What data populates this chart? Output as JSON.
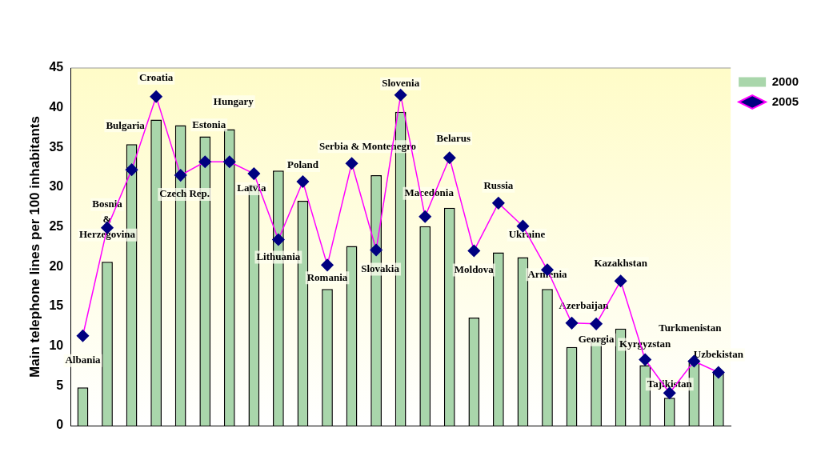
{
  "chart_data": {
    "type": "bar",
    "ylabel": "Main telephone lines per 100 inhabitants",
    "categories": [
      "Albania",
      "Bosnia & Herzegovina",
      "Bulgaria",
      "Croatia",
      "Czech Rep.",
      "Estonia",
      "Hungary",
      "Latvia",
      "Lithuania",
      "Poland",
      "Romania",
      "Serbia & Montenegro",
      "Slovakia",
      "Slovenia",
      "Macedonia",
      "Belarus",
      "Moldova",
      "Russia",
      "Ukraine",
      "Armenia",
      "Azerbaijan",
      "Georgia",
      "Kazakhstan",
      "Kyrgyzstan",
      "Tajikistan",
      "Turkmenistan",
      "Uzbekistan"
    ],
    "series": [
      {
        "name": "2000",
        "type": "bar",
        "color": "#a9d6ab",
        "values": [
          4.8,
          20.6,
          35.4,
          38.5,
          37.8,
          36.4,
          37.3,
          30.3,
          32.1,
          28.3,
          17.2,
          22.6,
          31.5,
          39.5,
          25.1,
          27.4,
          13.6,
          21.8,
          21.2,
          17.2,
          9.9,
          10.8,
          12.2,
          7.6,
          3.5,
          8.1,
          6.7
        ]
      },
      {
        "name": "2005",
        "type": "line",
        "color": "#ff00ff",
        "marker": "diamond",
        "values": [
          11.3,
          24.9,
          32.2,
          41.4,
          31.5,
          33.2,
          33.2,
          31.7,
          23.4,
          30.7,
          20.2,
          33.0,
          22.1,
          41.6,
          26.3,
          33.7,
          22.0,
          28.0,
          25.1,
          19.6,
          12.9,
          12.8,
          18.2,
          8.3,
          4.1,
          8.1,
          6.7
        ]
      }
    ],
    "ylim": [
      0,
      45
    ],
    "yticks": [
      0,
      5,
      10,
      15,
      20,
      25,
      30,
      35,
      40,
      45
    ],
    "grid": false,
    "legend": "top right",
    "tick_labels": "y"
  }
}
